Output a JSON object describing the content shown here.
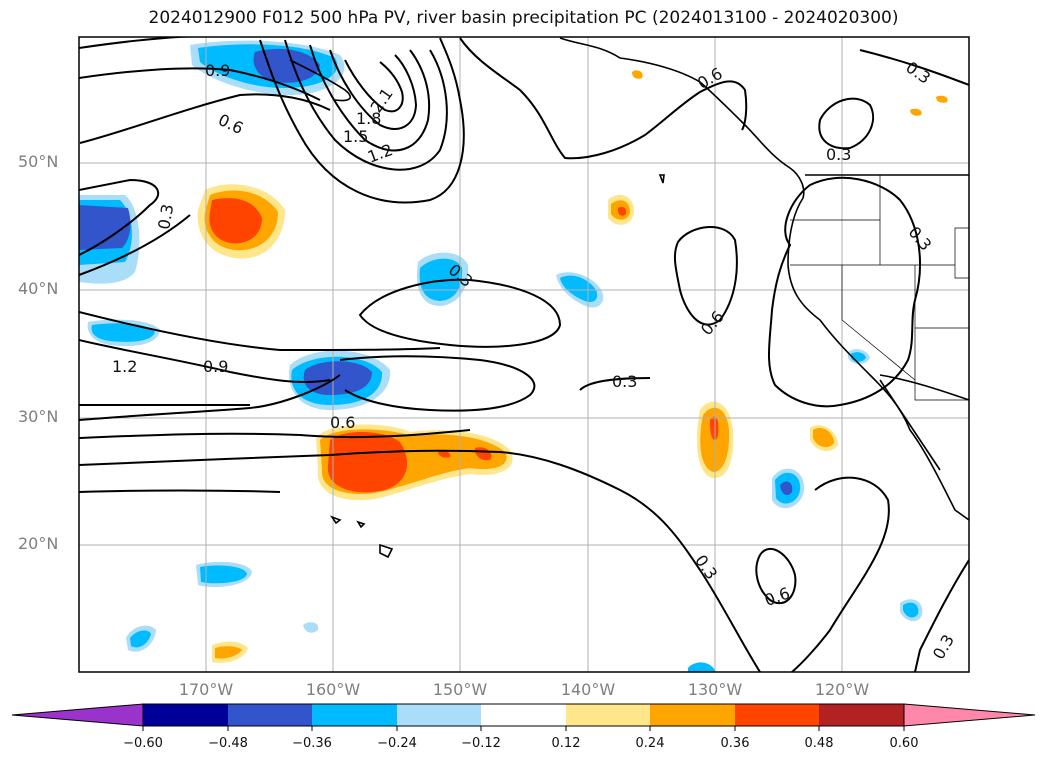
{
  "title": "2024012900 F012 500 hPa PV, river basin precipitation PC (2024013100 - 2024020300)",
  "latitude_labels": [
    "50°N",
    "40°N",
    "30°N",
    "20°N"
  ],
  "longitude_labels": [
    "170°W",
    "160°W",
    "150°W",
    "140°W",
    "130°W",
    "120°W"
  ],
  "colorbar": {
    "ticks": [
      "−0.60",
      "−0.48",
      "−0.36",
      "−0.24",
      "−0.12",
      "0.12",
      "0.24",
      "0.36",
      "0.48",
      "0.60"
    ],
    "colors": [
      "#9933cc",
      "#000099",
      "#3355cc",
      "#00bbff",
      "#aaddf8",
      "#ffffff",
      "#ffe68a",
      "#ffa500",
      "#ff4400",
      "#b22222",
      "#ff88aa"
    ]
  },
  "contour_labels": {
    "c1": "0.9",
    "c2": "0.6",
    "c3": "2.1",
    "c4": "1.8",
    "c5": "1.5",
    "c6": "1.2",
    "c7": "0.3",
    "c8": "0.3",
    "c9": "1.2",
    "c10": "0.9",
    "c11": "0.6",
    "c12": "0.3",
    "c13": "0.6",
    "c14": "0.6",
    "c15": "0.3",
    "c16": "0.3",
    "c17": "0.6",
    "c18": "0.3",
    "c19": "0.3",
    "c20": "0.3"
  }
}
